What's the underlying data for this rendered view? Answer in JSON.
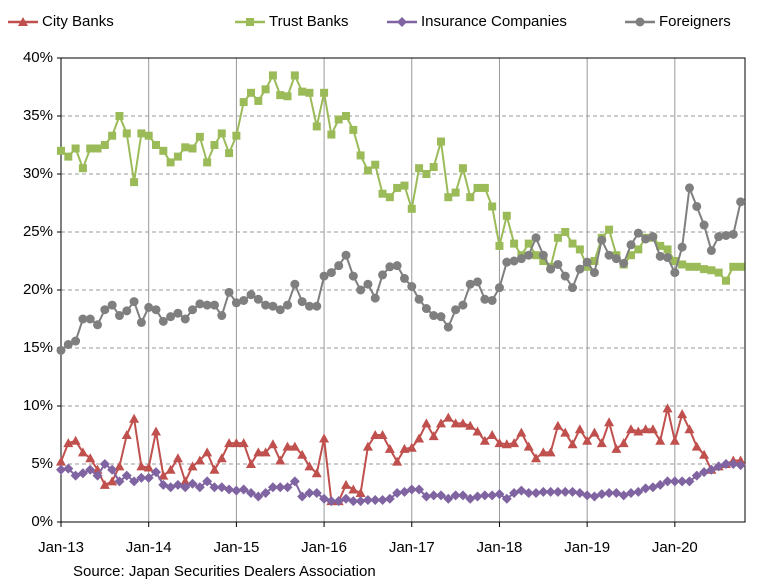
{
  "chart_data": {
    "type": "line",
    "categories": [
      "Jan-13",
      null,
      null,
      null,
      null,
      null,
      null,
      null,
      null,
      null,
      null,
      null,
      "Jan-14",
      null,
      null,
      null,
      null,
      null,
      null,
      null,
      null,
      null,
      null,
      null,
      "Jan-15",
      null,
      null,
      null,
      null,
      null,
      null,
      null,
      null,
      null,
      null,
      null,
      "Jan-16",
      null,
      null,
      null,
      null,
      null,
      null,
      null,
      null,
      null,
      null,
      null,
      "Jan-17",
      null,
      null,
      null,
      null,
      null,
      null,
      null,
      null,
      null,
      null,
      null,
      "Jan-18",
      null,
      null,
      null,
      null,
      null,
      null,
      null,
      null,
      null,
      null,
      null,
      "Jan-19",
      null,
      null,
      null,
      null,
      null,
      null,
      null,
      null,
      null,
      null,
      null,
      "Jan-20",
      null,
      null,
      null,
      null,
      null,
      null,
      null,
      null,
      null
    ],
    "series": [
      {
        "name": "City Banks",
        "color": "#c0504d",
        "marker": "triangle",
        "values": [
          5.2,
          6.8,
          7,
          6,
          5.5,
          4.5,
          3.2,
          3.5,
          4.8,
          7.5,
          8.9,
          4.8,
          4.7,
          7.8,
          4,
          4.5,
          5.5,
          3.5,
          4.8,
          5.3,
          6,
          4.5,
          5.5,
          6.8,
          6.8,
          6.8,
          5,
          6,
          6,
          6.7,
          5.3,
          6.5,
          6.5,
          5.8,
          4.8,
          4.2,
          7.2,
          1.8,
          1.8,
          3.2,
          2.8,
          2.5,
          6.5,
          7.5,
          7.5,
          6.3,
          5.2,
          6.3,
          6.4,
          7.2,
          8.5,
          7.4,
          8.5,
          9,
          8.5,
          8.5,
          8.3,
          7.8,
          7,
          7.5,
          6.8,
          6.7,
          6.8,
          7.7,
          6.5,
          5.5,
          6,
          6,
          8.3,
          7.7,
          6.7,
          8,
          7,
          7.7,
          6.8,
          8.6,
          6.3,
          6.8,
          8,
          7.8,
          8,
          8,
          7,
          9.8,
          7,
          9.3,
          8,
          6.5,
          5.8,
          4.5,
          4.8,
          5,
          5.3,
          5.3
        ]
      },
      {
        "name": "Trust Banks",
        "color": "#9bbb59",
        "marker": "square",
        "values": [
          32,
          31.5,
          32.2,
          30.5,
          32.2,
          32.2,
          32.5,
          33.3,
          35,
          33.5,
          29.3,
          33.5,
          33.3,
          32.5,
          32,
          31,
          31.5,
          32.3,
          32.2,
          33.2,
          31,
          32.5,
          33.5,
          31.8,
          33.3,
          36.2,
          37,
          36.3,
          37.3,
          38.5,
          36.8,
          36.7,
          38.5,
          37.1,
          37,
          34.1,
          37,
          33.4,
          34.7,
          35,
          33.8,
          31.6,
          30.3,
          30.8,
          28.3,
          28,
          28.8,
          29,
          27,
          30.5,
          30,
          30.6,
          32.8,
          28,
          28.4,
          30.5,
          28,
          28.8,
          28.8,
          27.2,
          23.8,
          26.4,
          24,
          23,
          24,
          23,
          22.5,
          22,
          24.5,
          25,
          24,
          23.5,
          22,
          22.5,
          24.5,
          25.2,
          23,
          22.2,
          23,
          23.5,
          24.5,
          24.5,
          23.8,
          23.5,
          22.5,
          22.2,
          22,
          22,
          21.8,
          21.7,
          21.5,
          20.8,
          22,
          22
        ]
      },
      {
        "name": "Insurance Companies",
        "color": "#8064a2",
        "marker": "diamond",
        "values": [
          4.5,
          4.6,
          4,
          4.2,
          4.5,
          4,
          5,
          4.5,
          3.5,
          4,
          3.5,
          3.8,
          3.8,
          4.3,
          3.2,
          3,
          3.2,
          3,
          3.3,
          3,
          3.5,
          3,
          3,
          2.8,
          2.7,
          2.8,
          2.5,
          2.2,
          2.5,
          3,
          3,
          3,
          3.5,
          2.2,
          2.5,
          2.5,
          2,
          1.8,
          1.8,
          2,
          1.8,
          1.8,
          1.9,
          1.9,
          1.9,
          2,
          2.5,
          2.6,
          2.8,
          2.8,
          2.2,
          2.3,
          2.3,
          2,
          2.3,
          2.3,
          2,
          2.2,
          2.3,
          2.3,
          2.4,
          2,
          2.5,
          2.7,
          2.5,
          2.5,
          2.6,
          2.6,
          2.6,
          2.6,
          2.6,
          2.5,
          2.3,
          2.2,
          2.4,
          2.5,
          2.5,
          2.3,
          2.5,
          2.6,
          2.9,
          3,
          3.2,
          3.5,
          3.5,
          3.5,
          3.5,
          4,
          4.3,
          4.5,
          4.8,
          5,
          5,
          4.9
        ]
      },
      {
        "name": "Foreigners",
        "color": "#7f7f7f",
        "marker": "circle",
        "values": [
          14.8,
          15.3,
          15.6,
          17.5,
          17.5,
          17,
          18.3,
          18.7,
          17.8,
          18.2,
          19,
          17.2,
          18.5,
          18.3,
          17.3,
          17.7,
          18,
          17.5,
          18.3,
          18.8,
          18.7,
          18.7,
          17.8,
          19.8,
          18.9,
          19.1,
          19.6,
          19.2,
          18.7,
          18.6,
          18.3,
          18.7,
          20.5,
          19,
          18.6,
          18.6,
          21.2,
          21.5,
          22.1,
          23,
          21.2,
          20,
          20.5,
          19.3,
          21.3,
          22,
          22.1,
          21,
          20.3,
          19.2,
          18.4,
          17.8,
          17.7,
          16.8,
          18.3,
          18.7,
          20.5,
          20.7,
          19.2,
          19.1,
          20.2,
          22.4,
          22.5,
          22.7,
          23,
          24.5,
          23,
          21.8,
          22.2,
          21.2,
          20.2,
          21.8,
          22.4,
          21.5,
          24.3,
          23,
          22.7,
          22.3,
          23.9,
          24.9,
          24.4,
          24.6,
          22.9,
          22.8,
          21.5,
          23.7,
          28.8,
          27.2,
          25.6,
          23.4,
          24.6,
          24.7,
          24.8,
          27.6
        ]
      }
    ],
    "ylim": [
      0,
      40
    ],
    "yticks": [
      {
        "value": 0,
        "label": "0%"
      },
      {
        "value": 5,
        "label": "5%"
      },
      {
        "value": 10,
        "label": "10%"
      },
      {
        "value": 15,
        "label": "15%"
      },
      {
        "value": 20,
        "label": "20%"
      },
      {
        "value": 25,
        "label": "25%"
      },
      {
        "value": 30,
        "label": "30%"
      },
      {
        "value": 35,
        "label": "35%"
      },
      {
        "value": 40,
        "label": "40%"
      }
    ],
    "grid": true,
    "legend": "top",
    "source": "Source: Japan Securities Dealers Association"
  }
}
